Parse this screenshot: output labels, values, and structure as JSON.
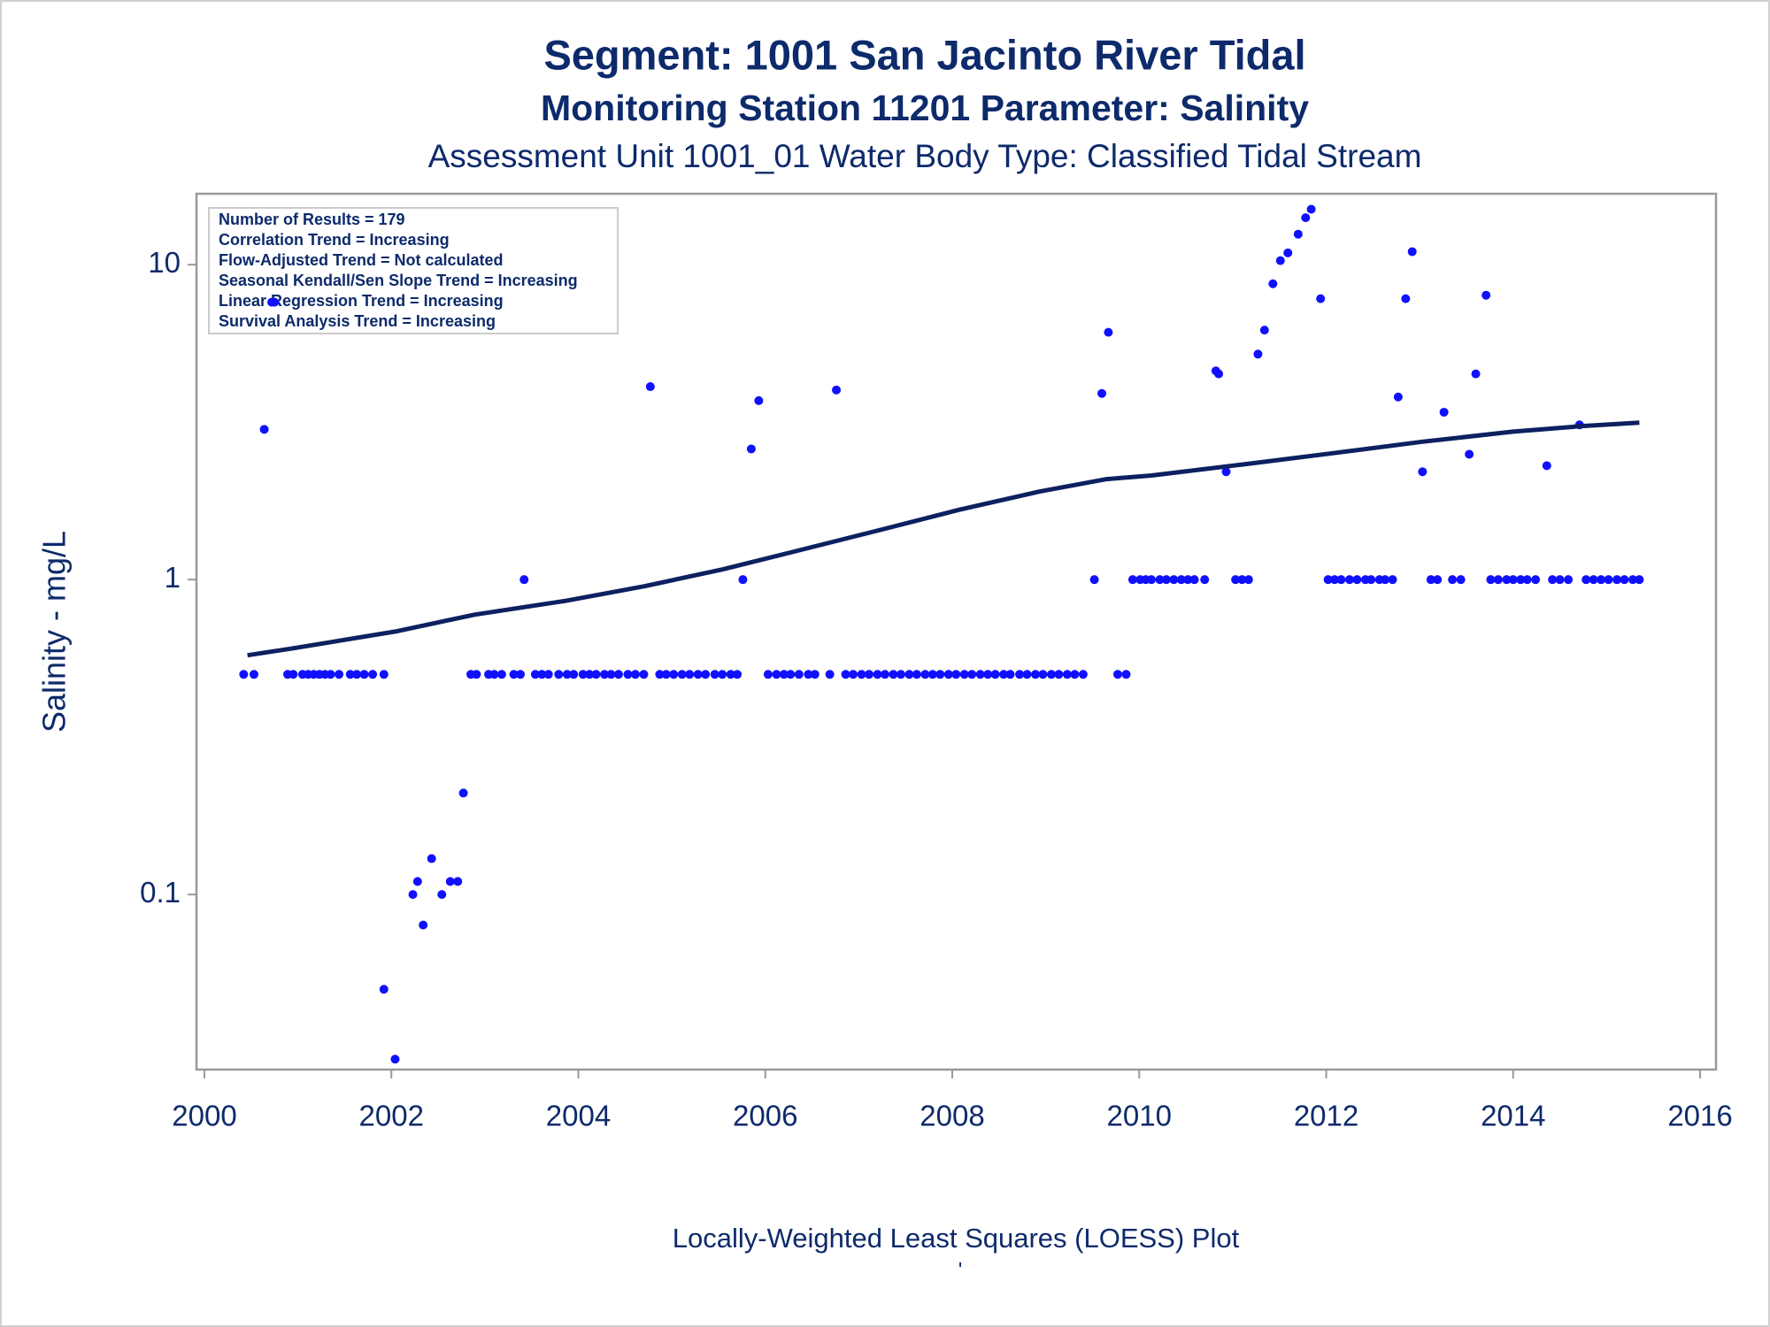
{
  "chart_data": {
    "type": "scatter",
    "title": "Segment: 1001  San Jacinto River Tidal",
    "subtitle": "Monitoring Station 11201 Parameter: Salinity",
    "subtitle2": "Assessment Unit 1001_01   Water Body Type: Classified Tidal Stream",
    "ylabel": "Salinity - mg/L",
    "footnote": "Locally-Weighted Least Squares (LOESS) Plot",
    "footnote2": "'",
    "annotations": [
      "Number of Results = 179",
      "Correlation Trend = Increasing",
      "Flow-Adjusted Trend = Not calculated",
      "Seasonal Kendall/Sen Slope Trend = Increasing",
      "Linear Regression Trend = Increasing",
      "Survival Analysis Trend = Increasing"
    ],
    "xlim": [
      1999.915,
      2016.17
    ],
    "xticks": [
      2000,
      2002,
      2004,
      2006,
      2008,
      2010,
      2012,
      2014,
      2016
    ],
    "ylim": [
      0.0278,
      16.8
    ],
    "yticks": [
      0.1,
      1,
      10
    ],
    "ylog": true,
    "grid": false,
    "series": [
      {
        "type": "scatter",
        "color": "#1010ff",
        "x": [
          2000.42,
          2000.53,
          2000.89,
          2000.95,
          2001.05,
          2001.11,
          2001.17,
          2001.23,
          2001.29,
          2001.35,
          2001.44,
          2001.56,
          2001.63,
          2001.71,
          2001.8,
          2001.92,
          2002.85,
          2002.91,
          2003.04,
          2003.1,
          2003.18,
          2003.31,
          2003.38,
          2003.54,
          2003.61,
          2003.68,
          2003.79,
          2003.88,
          2003.95,
          2004.05,
          2004.12,
          2004.19,
          2004.28,
          2004.35,
          2004.43,
          2004.53,
          2004.61,
          2004.7,
          2004.87,
          2004.94,
          2005.02,
          2005.11,
          2005.19,
          2005.28,
          2005.36,
          2005.46,
          2005.54,
          2005.63,
          2005.7,
          2006.03,
          2006.12,
          2006.2,
          2006.27,
          2006.36,
          2006.46,
          2006.53,
          2006.69,
          2006.86,
          2006.94,
          2007.03,
          2007.11,
          2007.2,
          2007.28,
          2007.37,
          2007.45,
          2007.54,
          2007.62,
          2007.71,
          2007.79,
          2007.87,
          2007.96,
          2008.04,
          2008.13,
          2008.21,
          2008.3,
          2008.38,
          2008.46,
          2008.55,
          2008.62,
          2008.72,
          2008.8,
          2008.89,
          2008.97,
          2009.06,
          2009.14,
          2009.23,
          2009.31,
          2009.4,
          2009.77,
          2009.86,
          2003.42,
          2005.76,
          2009.52,
          2009.93,
          2010.01,
          2010.07,
          2010.13,
          2010.22,
          2010.29,
          2010.37,
          2010.45,
          2010.52,
          2010.59,
          2010.7,
          2011.03,
          2011.1,
          2011.17,
          2012.02,
          2012.09,
          2012.16,
          2012.25,
          2012.33,
          2012.42,
          2012.48,
          2012.57,
          2012.63,
          2012.71,
          2013.12,
          2013.19,
          2013.35,
          2013.44,
          2013.76,
          2013.84,
          2013.93,
          2014.0,
          2014.08,
          2014.15,
          2014.24,
          2014.42,
          2014.5,
          2014.59,
          2014.78,
          2014.86,
          2014.94,
          2015.02,
          2015.11,
          2015.19,
          2015.28,
          2015.35,
          2000.64,
          2000.72,
          2000.75,
          2001.92,
          2002.04,
          2002.23,
          2002.28,
          2002.34,
          2002.43,
          2002.54,
          2002.63,
          2002.71,
          2002.77,
          2004.77,
          2005.85,
          2005.93,
          2006.76,
          2009.6,
          2009.67,
          2010.82,
          2010.85,
          2010.93,
          2011.27,
          2011.34,
          2011.43,
          2011.51,
          2011.59,
          2011.7,
          2011.78,
          2011.84,
          2011.94,
          2012.77,
          2012.85,
          2012.92,
          2013.03,
          2013.26,
          2013.53,
          2013.6,
          2013.71,
          2014.36,
          2014.71
        ],
        "values": [
          0.5,
          0.5,
          0.5,
          0.5,
          0.5,
          0.5,
          0.5,
          0.5,
          0.5,
          0.5,
          0.5,
          0.5,
          0.5,
          0.5,
          0.5,
          0.5,
          0.5,
          0.5,
          0.5,
          0.5,
          0.5,
          0.5,
          0.5,
          0.5,
          0.5,
          0.5,
          0.5,
          0.5,
          0.5,
          0.5,
          0.5,
          0.5,
          0.5,
          0.5,
          0.5,
          0.5,
          0.5,
          0.5,
          0.5,
          0.5,
          0.5,
          0.5,
          0.5,
          0.5,
          0.5,
          0.5,
          0.5,
          0.5,
          0.5,
          0.5,
          0.5,
          0.5,
          0.5,
          0.5,
          0.5,
          0.5,
          0.5,
          0.5,
          0.5,
          0.5,
          0.5,
          0.5,
          0.5,
          0.5,
          0.5,
          0.5,
          0.5,
          0.5,
          0.5,
          0.5,
          0.5,
          0.5,
          0.5,
          0.5,
          0.5,
          0.5,
          0.5,
          0.5,
          0.5,
          0.5,
          0.5,
          0.5,
          0.5,
          0.5,
          0.5,
          0.5,
          0.5,
          0.5,
          0.5,
          0.5,
          1,
          1,
          1,
          1,
          1,
          1,
          1,
          1,
          1,
          1,
          1,
          1,
          1,
          1,
          1,
          1,
          1,
          1,
          1,
          1,
          1,
          1,
          1,
          1,
          1,
          1,
          1,
          1,
          1,
          1,
          1,
          1,
          1,
          1,
          1,
          1,
          1,
          1,
          1,
          1,
          1,
          1,
          1,
          1,
          1,
          1,
          1,
          1,
          1,
          3.0,
          7.6,
          7.6,
          0.05,
          0.03,
          0.1,
          0.11,
          0.08,
          0.13,
          0.1,
          0.11,
          0.11,
          0.21,
          4.1,
          2.6,
          3.7,
          4.0,
          3.9,
          6.1,
          4.6,
          4.5,
          2.2,
          5.2,
          6.2,
          8.7,
          10.3,
          10.9,
          12.5,
          14.1,
          15.0,
          7.8,
          3.8,
          7.8,
          11.0,
          2.2,
          3.4,
          2.5,
          4.5,
          8.0,
          2.3,
          3.1
        ]
      },
      {
        "type": "line",
        "color": "#0d2060",
        "x": [
          2000.46,
          2000.95,
          2002.04,
          2002.89,
          2003.85,
          2004.7,
          2005.54,
          2006.27,
          2007.23,
          2008.08,
          2008.93,
          2009.65,
          2010.13,
          2011.1,
          2012.07,
          2013.03,
          2014.0,
          2014.72,
          2015.35
        ],
        "values": [
          0.575,
          0.605,
          0.684,
          0.774,
          0.855,
          0.952,
          1.077,
          1.219,
          1.438,
          1.668,
          1.903,
          2.085,
          2.14,
          2.32,
          2.52,
          2.74,
          2.95,
          3.07,
          3.15
        ]
      }
    ]
  }
}
